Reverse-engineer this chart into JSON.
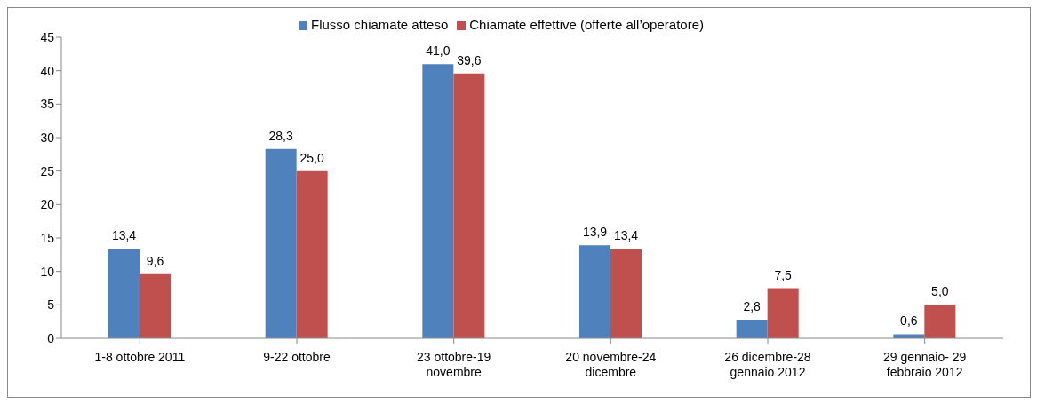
{
  "chart_data": {
    "type": "bar",
    "categories": [
      "1-8 ottobre 2011",
      "9-22 ottobre",
      "23 ottobre-19\nnovembre",
      "20 novembre-24\ndicembre",
      "26 dicembre-28\ngennaio 2012",
      "29 gennaio- 29\nfebbraio 2012"
    ],
    "series": [
      {
        "name": "Flusso chiamate atteso",
        "color": "#4f81bd",
        "values": [
          13.4,
          28.3,
          41.0,
          13.9,
          2.8,
          0.6
        ],
        "value_labels": [
          "13,4",
          "28,3",
          "41,0",
          "13,9",
          "2,8",
          "0,6"
        ]
      },
      {
        "name": "Chiamate effettive (offerte all’operatore)",
        "color": "#c0504d",
        "values": [
          9.6,
          25.0,
          39.6,
          13.4,
          7.5,
          5.0
        ],
        "value_labels": [
          "9,6",
          "25,0",
          "39,6",
          "13,4",
          "7,5",
          "5,0"
        ]
      }
    ],
    "ylim": [
      0,
      45
    ],
    "yticks": [
      0,
      5,
      10,
      15,
      20,
      25,
      30,
      35,
      40,
      45
    ],
    "grid": false,
    "legend": "top"
  }
}
